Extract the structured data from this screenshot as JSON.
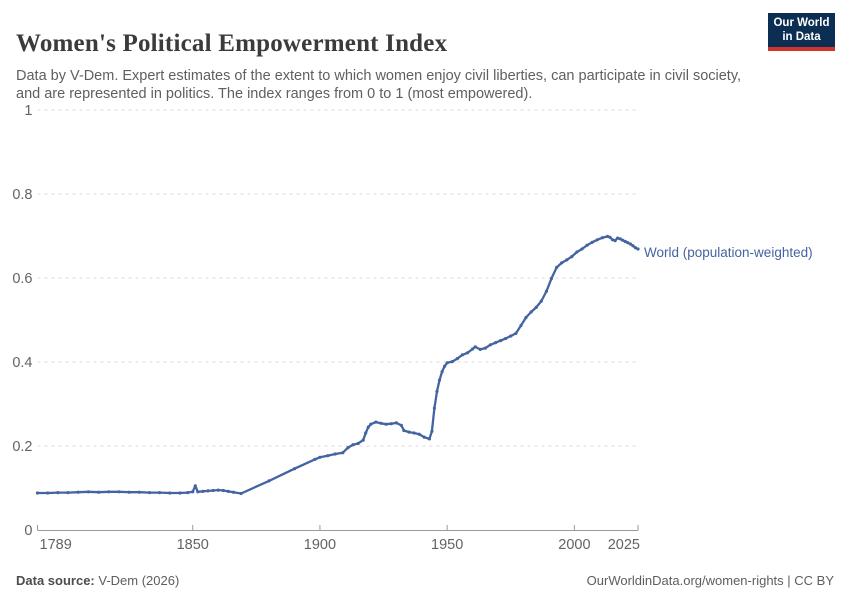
{
  "header": {
    "title": "Women's Political Empowerment Index",
    "subtitle": "Data by V-Dem. Expert estimates of the extent to which women enjoy civil liberties, can participate in civil society, and are represented in politics. The index ranges from 0 to 1 (most empowered).",
    "logo": {
      "text": "Our World\nin Data",
      "bg_color": "#0d2e53",
      "stripe_color": "#d0342c"
    }
  },
  "footer": {
    "source_label": "Data source:",
    "source_value": " V-Dem (2026)",
    "link": "OurWorldinData.org/women-rights | CC BY"
  },
  "chart_data": {
    "type": "line",
    "title": "Women's Political Empowerment Index",
    "xlabel": "",
    "ylabel": "",
    "xlim": [
      1789,
      2025
    ],
    "ylim": [
      0,
      1
    ],
    "xticks": [
      1789,
      1850,
      1900,
      1950,
      2000,
      2025
    ],
    "yticks": [
      0,
      0.2,
      0.4,
      0.6,
      0.8,
      1
    ],
    "ytick_labels": [
      "0",
      "0.2",
      "0.4",
      "0.6",
      "0.8",
      "1"
    ],
    "grid": "horizontal-dashed",
    "legend_position": "end-of-line-label",
    "series": [
      {
        "name": "World (population-weighted)",
        "color": "#4464a1",
        "points": [
          [
            1789,
            0.088
          ],
          [
            1793,
            0.088
          ],
          [
            1797,
            0.089
          ],
          [
            1801,
            0.089
          ],
          [
            1805,
            0.09
          ],
          [
            1809,
            0.091
          ],
          [
            1813,
            0.09
          ],
          [
            1817,
            0.091
          ],
          [
            1821,
            0.091
          ],
          [
            1825,
            0.09
          ],
          [
            1829,
            0.09
          ],
          [
            1833,
            0.089
          ],
          [
            1837,
            0.089
          ],
          [
            1841,
            0.088
          ],
          [
            1845,
            0.088
          ],
          [
            1848,
            0.089
          ],
          [
            1850,
            0.091
          ],
          [
            1851,
            0.105
          ],
          [
            1852,
            0.091
          ],
          [
            1854,
            0.092
          ],
          [
            1856,
            0.093
          ],
          [
            1858,
            0.094
          ],
          [
            1860,
            0.095
          ],
          [
            1862,
            0.094
          ],
          [
            1864,
            0.092
          ],
          [
            1866,
            0.09
          ],
          [
            1869,
            0.087
          ],
          [
            1880,
            0.117
          ],
          [
            1890,
            0.146
          ],
          [
            1898,
            0.168
          ],
          [
            1900,
            0.173
          ],
          [
            1903,
            0.177
          ],
          [
            1906,
            0.181
          ],
          [
            1909,
            0.184
          ],
          [
            1911,
            0.196
          ],
          [
            1913,
            0.203
          ],
          [
            1915,
            0.206
          ],
          [
            1917,
            0.214
          ],
          [
            1918,
            0.231
          ],
          [
            1919,
            0.245
          ],
          [
            1920,
            0.252
          ],
          [
            1922,
            0.257
          ],
          [
            1924,
            0.254
          ],
          [
            1926,
            0.252
          ],
          [
            1928,
            0.253
          ],
          [
            1930,
            0.255
          ],
          [
            1932,
            0.249
          ],
          [
            1933,
            0.237
          ],
          [
            1935,
            0.233
          ],
          [
            1937,
            0.231
          ],
          [
            1939,
            0.228
          ],
          [
            1941,
            0.221
          ],
          [
            1943,
            0.217
          ],
          [
            1944,
            0.235
          ],
          [
            1945,
            0.29
          ],
          [
            1946,
            0.33
          ],
          [
            1947,
            0.357
          ],
          [
            1948,
            0.377
          ],
          [
            1949,
            0.39
          ],
          [
            1950,
            0.398
          ],
          [
            1952,
            0.401
          ],
          [
            1954,
            0.408
          ],
          [
            1956,
            0.417
          ],
          [
            1958,
            0.422
          ],
          [
            1960,
            0.431
          ],
          [
            1961,
            0.436
          ],
          [
            1963,
            0.43
          ],
          [
            1965,
            0.433
          ],
          [
            1967,
            0.441
          ],
          [
            1969,
            0.446
          ],
          [
            1971,
            0.451
          ],
          [
            1973,
            0.456
          ],
          [
            1975,
            0.462
          ],
          [
            1977,
            0.468
          ],
          [
            1979,
            0.487
          ],
          [
            1981,
            0.506
          ],
          [
            1983,
            0.519
          ],
          [
            1985,
            0.53
          ],
          [
            1987,
            0.545
          ],
          [
            1989,
            0.568
          ],
          [
            1991,
            0.599
          ],
          [
            1993,
            0.625
          ],
          [
            1995,
            0.636
          ],
          [
            1997,
            0.643
          ],
          [
            1999,
            0.651
          ],
          [
            2001,
            0.662
          ],
          [
            2003,
            0.669
          ],
          [
            2005,
            0.678
          ],
          [
            2007,
            0.685
          ],
          [
            2009,
            0.691
          ],
          [
            2011,
            0.696
          ],
          [
            2013,
            0.699
          ],
          [
            2014,
            0.697
          ],
          [
            2015,
            0.691
          ],
          [
            2016,
            0.689
          ],
          [
            2017,
            0.695
          ],
          [
            2018,
            0.693
          ],
          [
            2019,
            0.69
          ],
          [
            2020,
            0.687
          ],
          [
            2021,
            0.684
          ],
          [
            2022,
            0.681
          ],
          [
            2023,
            0.677
          ],
          [
            2024,
            0.672
          ],
          [
            2025,
            0.669
          ]
        ]
      }
    ]
  }
}
